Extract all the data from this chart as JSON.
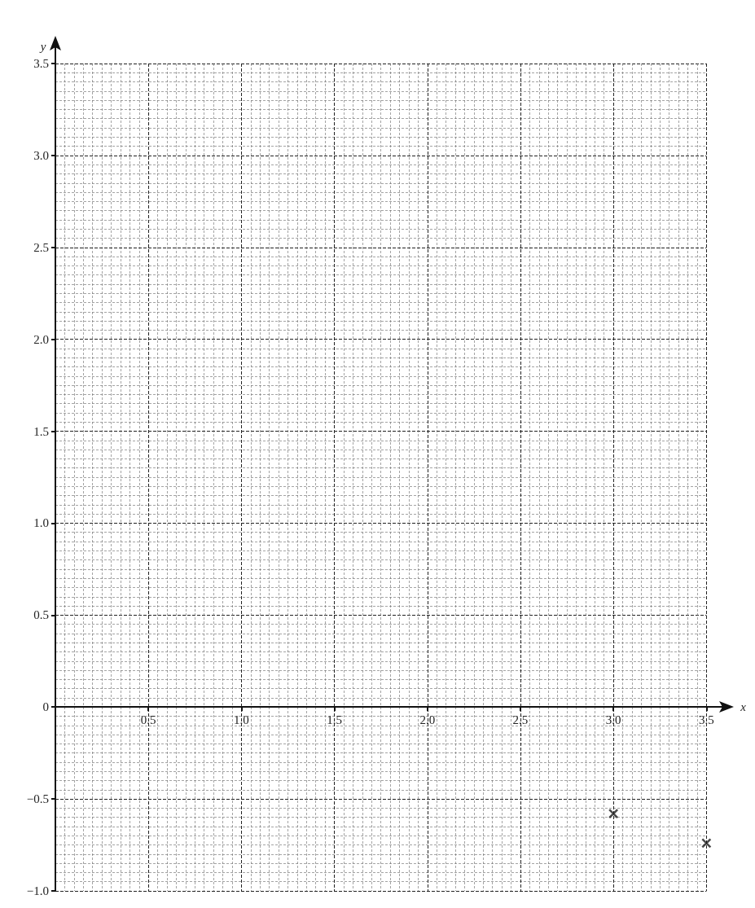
{
  "chart_data": {
    "type": "scatter",
    "xlabel": "x",
    "ylabel": "y",
    "x": [
      3.0,
      3.5
    ],
    "values": [
      -0.58,
      -0.74
    ],
    "color": "#1a1a1a",
    "marker": "cross",
    "xlim": [
      0,
      3.5
    ],
    "ylim": [
      -1.0,
      3.5
    ],
    "xticks": [
      0.5,
      {
        "value": 1,
        "label": "1.0"
      },
      1.5,
      {
        "value": 2,
        "label": "2.0"
      },
      2.5,
      {
        "value": 3,
        "label": "3.0"
      },
      3.5
    ],
    "yticks": [
      {
        "value": -1,
        "label": "−1.0"
      },
      {
        "value": -0.5,
        "label": "−0.5"
      },
      0,
      0.5,
      {
        "value": 1,
        "label": "1.0"
      },
      1.5,
      {
        "value": 2,
        "label": "2.0"
      },
      2.5,
      {
        "value": 3,
        "label": "3.0"
      },
      3.5
    ],
    "grid": true
  }
}
